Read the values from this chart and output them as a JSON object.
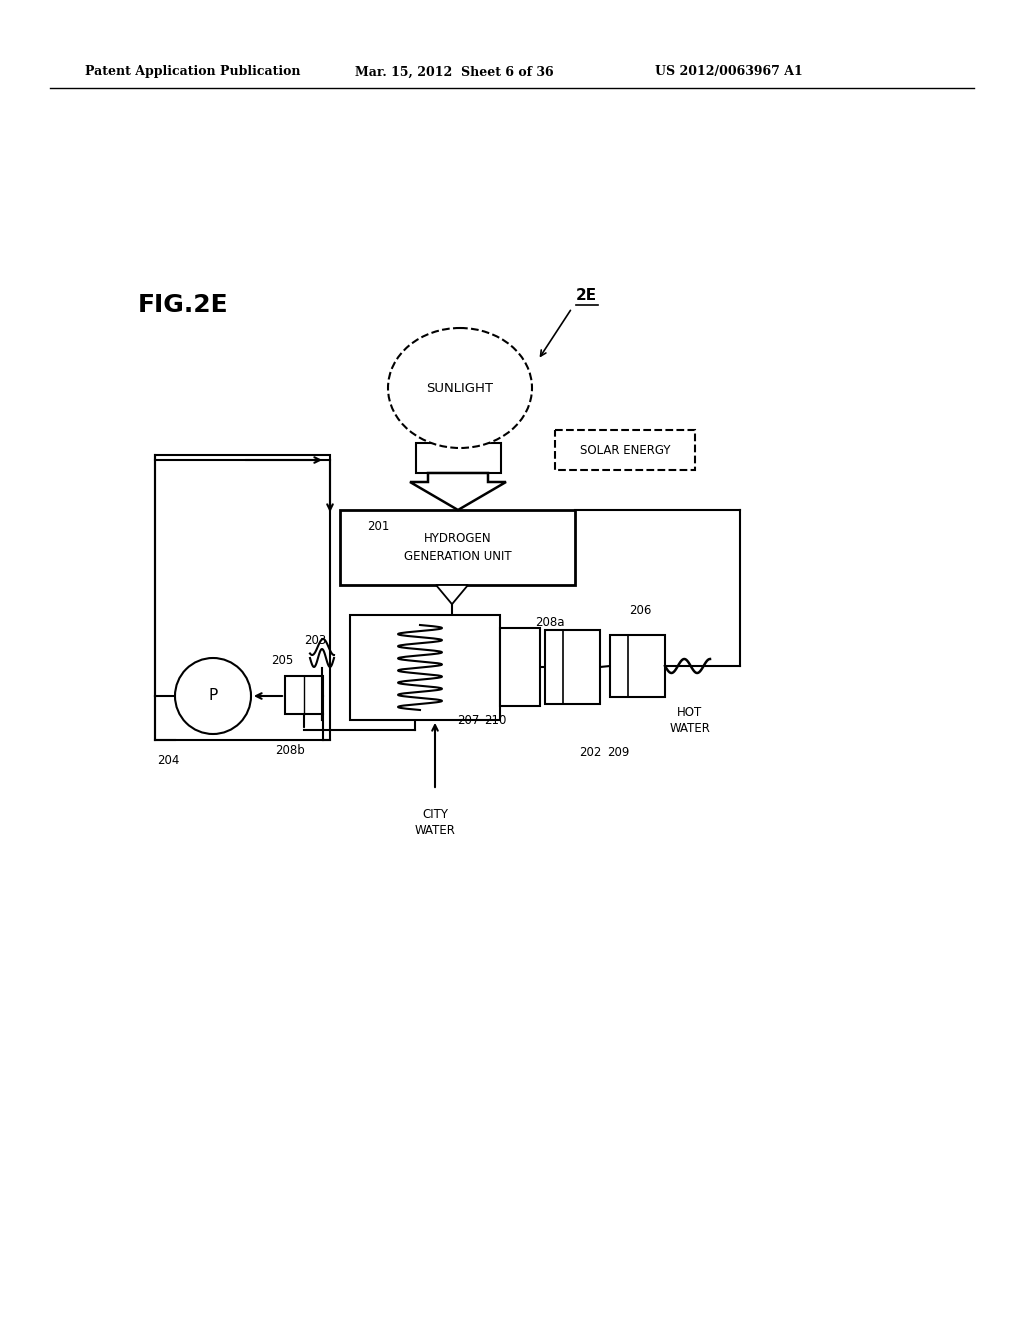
{
  "bg_color": "#ffffff",
  "line_color": "#000000",
  "header_left": "Patent Application Publication",
  "header_center": "Mar. 15, 2012  Sheet 6 of 36",
  "header_right": "US 2012/0063967 A1",
  "fig_label": "FIG.2E",
  "diagram_label": "2E"
}
